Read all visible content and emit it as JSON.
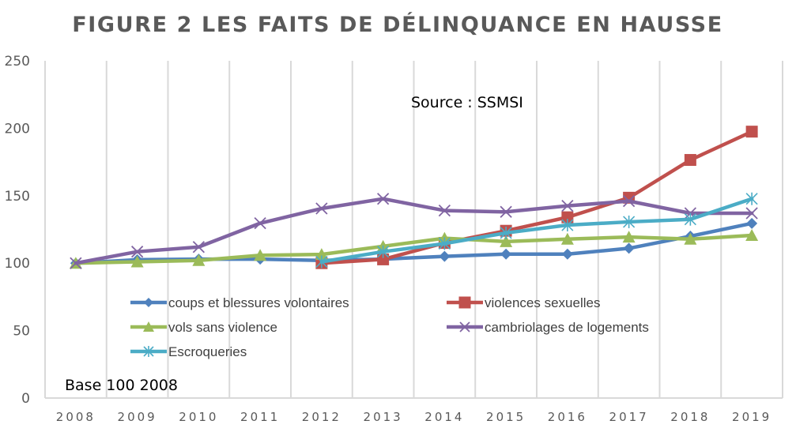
{
  "chart_data": {
    "type": "line",
    "title": "FIGURE 2 LES FAITS DE DÉLINQUANCE EN HAUSSE",
    "xlabel": "",
    "ylabel": "",
    "categories": [
      "2008",
      "2009",
      "2010",
      "2011",
      "2012",
      "2013",
      "2014",
      "2015",
      "2016",
      "2017",
      "2018",
      "2019"
    ],
    "ylim": [
      0,
      250
    ],
    "yticks": [
      0,
      50,
      100,
      150,
      200,
      250
    ],
    "grid": "vertical",
    "legend_position": "center-lower",
    "annotations": {
      "source": "Source : SSMSI",
      "base": "Base 100 2008"
    },
    "series": [
      {
        "name": "coups et blessures volontaires",
        "color": "#4F81BD",
        "marker": "diamond",
        "values": [
          100,
          102.5,
          103,
          103,
          102,
          103,
          105,
          106.7,
          106.7,
          111,
          120,
          129.5
        ]
      },
      {
        "name": "violences sexuelles",
        "color": "#C0504D",
        "marker": "square",
        "values": [
          null,
          null,
          null,
          null,
          100,
          102.8,
          115,
          124,
          134,
          148.5,
          176.5,
          197.5
        ]
      },
      {
        "name": "vols sans violence",
        "color": "#9BBB59",
        "marker": "triangle",
        "values": [
          100,
          101,
          102,
          105.8,
          106.5,
          112.5,
          118.5,
          116,
          117.8,
          119.4,
          117.8,
          120.6
        ]
      },
      {
        "name": "cambriolages de logements",
        "color": "#8064A2",
        "marker": "x",
        "values": [
          100,
          108.5,
          112,
          129.6,
          140.5,
          147.7,
          139,
          138,
          142.5,
          146,
          137,
          137
        ]
      },
      {
        "name": "Escroqueries",
        "color": "#4BACC6",
        "marker": "star",
        "values": [
          null,
          null,
          null,
          null,
          101,
          108.5,
          114.5,
          122.4,
          128.2,
          130.6,
          132.5,
          147.7
        ]
      }
    ]
  }
}
